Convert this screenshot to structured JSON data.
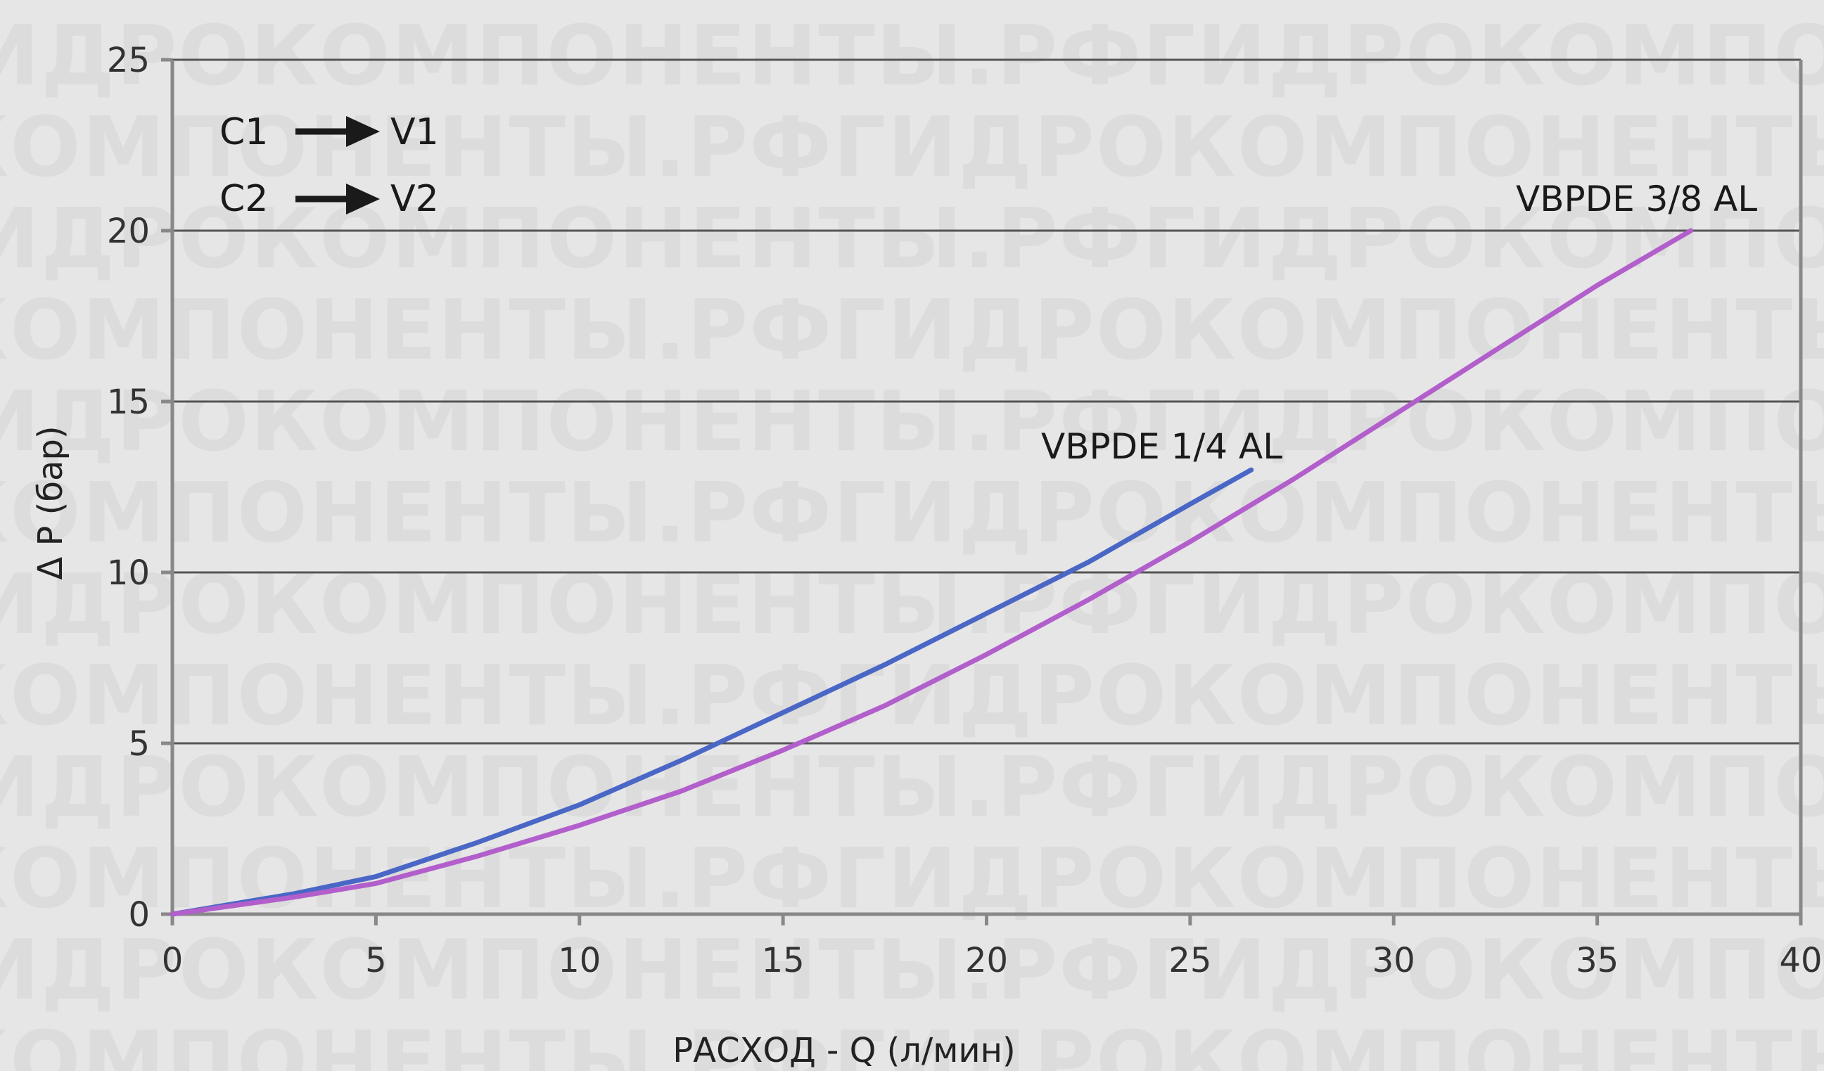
{
  "watermark": "ГИДРОКОМПОНЕНТЫ.РФ",
  "legend": {
    "rows": [
      {
        "from": "C1",
        "to": "V1"
      },
      {
        "from": "C2",
        "to": "V2"
      }
    ]
  },
  "chart_data": {
    "type": "line",
    "title": "",
    "xlabel": "РАСХОД - Q (л/мин)",
    "ylabel": "Δ P (бар)",
    "xlim": [
      0,
      40
    ],
    "ylim": [
      0,
      25
    ],
    "xticks": [
      0,
      5,
      10,
      15,
      20,
      25,
      30,
      35,
      40
    ],
    "yticks": [
      0,
      5,
      10,
      15,
      20,
      25
    ],
    "grid": "horizontal",
    "colors": {
      "background": "#e6e6e6",
      "grid": "#555555",
      "axis": "#888888"
    },
    "series": [
      {
        "name": "VBPDE 1/4 AL",
        "color": "#4a67c6",
        "x": [
          0,
          3,
          5,
          7.5,
          10,
          12.5,
          15,
          17.5,
          20,
          22.5,
          25,
          26.5
        ],
        "y": [
          0,
          0.6,
          1.1,
          2.1,
          3.2,
          4.5,
          5.9,
          7.3,
          8.8,
          10.3,
          12.0,
          13.0
        ]
      },
      {
        "name": "VBPDE 3/8 AL",
        "color": "#b25fcc",
        "x": [
          0,
          3,
          5,
          7.5,
          10,
          12.5,
          15,
          17.5,
          20,
          22.5,
          25,
          27.5,
          30,
          32.5,
          35,
          37.3
        ],
        "y": [
          0,
          0.5,
          0.9,
          1.7,
          2.6,
          3.6,
          4.8,
          6.1,
          7.6,
          9.2,
          10.9,
          12.7,
          14.6,
          16.5,
          18.4,
          20.0
        ]
      }
    ]
  }
}
